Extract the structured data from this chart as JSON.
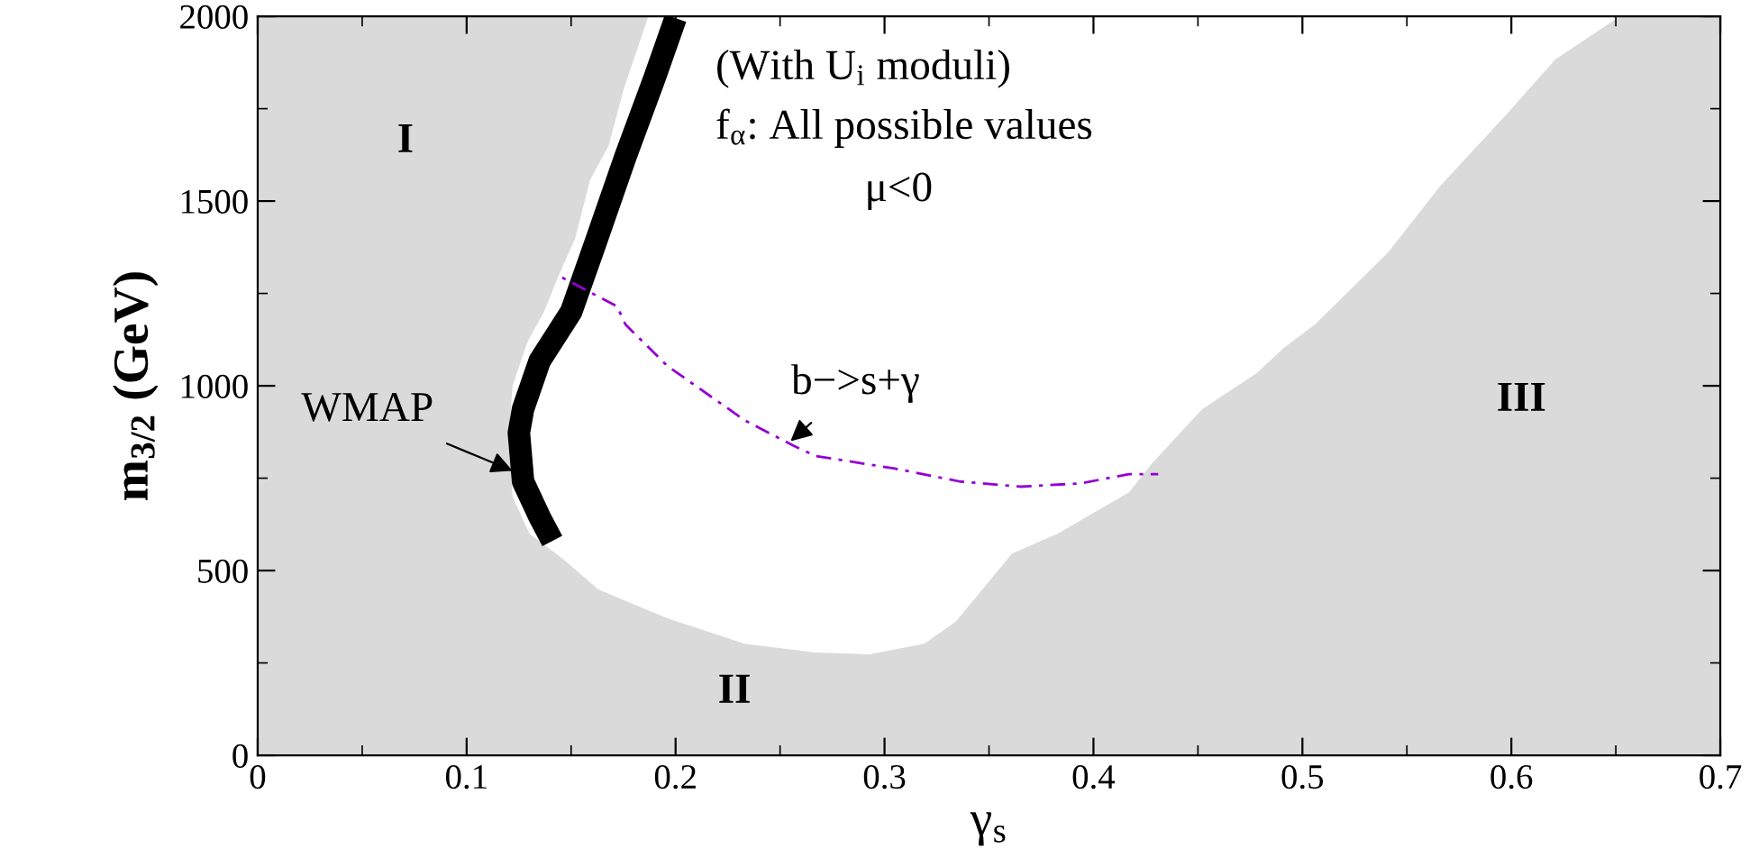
{
  "chart_data": {
    "type": "area",
    "xlabel": "γ$_{s}$",
    "ylabel": "m$_{3/2}$ (GeV)",
    "xlim": [
      0,
      0.7
    ],
    "ylim": [
      0,
      2000
    ],
    "xticks": [
      0,
      0.1,
      0.2,
      0.3,
      0.4,
      0.5,
      0.6,
      0.7
    ],
    "yticks": [
      0,
      500,
      1000,
      1500,
      2000
    ],
    "grid": false,
    "legend": false,
    "series": [
      {
        "color": "#dadada",
        "x": [
          0.187,
          0.175,
          0.168,
          0.159,
          0.152,
          0.144,
          0.137,
          0.129,
          0.122,
          0.12,
          0.122,
          0.13,
          0.146,
          0.163,
          0.196,
          0.233,
          0.267,
          0.293,
          0.319,
          0.334,
          0.361,
          0.383,
          0.417,
          0.428,
          0.452,
          0.478,
          0.491,
          0.506,
          0.541,
          0.566,
          0.598,
          0.621,
          0.652,
          0.7,
          0.7,
          0,
          0
        ],
        "values": [
          2000,
          1800,
          1650,
          1556,
          1400,
          1298,
          1200,
          1117,
          1000,
          850,
          700,
          600,
          532,
          449,
          371,
          302,
          278,
          273,
          302,
          361,
          546,
          600,
          712,
          790,
          937,
          1034,
          1102,
          1166,
          1361,
          1541,
          1737,
          1883,
          2000,
          2000,
          0,
          0,
          2000
        ]
      },
      {
        "type": "line",
        "color": "#000000",
        "line_style": "solid",
        "x": [
          0.2,
          0.19,
          0.176,
          0.161,
          0.15,
          0.135,
          0.127,
          0.125,
          0.127,
          0.135,
          0.141
        ],
        "values": [
          1995,
          1834,
          1620,
          1376,
          1200,
          1068,
          937,
          873,
          741,
          644,
          580
        ]
      },
      {
        "type": "line",
        "color": "#9400d3",
        "line_style": "dashed",
        "x": [
          0.144,
          0.172,
          0.176,
          0.196,
          0.233,
          0.256,
          0.267,
          0.305,
          0.336,
          0.365,
          0.394,
          0.417,
          0.431
        ],
        "values": [
          1298,
          1215,
          1166,
          1054,
          907,
          839,
          810,
          776,
          741,
          727,
          736,
          761,
          761
        ]
      }
    ],
    "annotations": [
      "I",
      "II",
      "III",
      {
        "text": "WMAP",
        "x": 0.122,
        "y": 770
      },
      {
        "text": "b−>s+γ",
        "x": 0.255,
        "y": 850
      },
      "(With U$_{i}$ moduli)",
      "f$_{α}$: All possible values",
      "μ<0"
    ]
  }
}
